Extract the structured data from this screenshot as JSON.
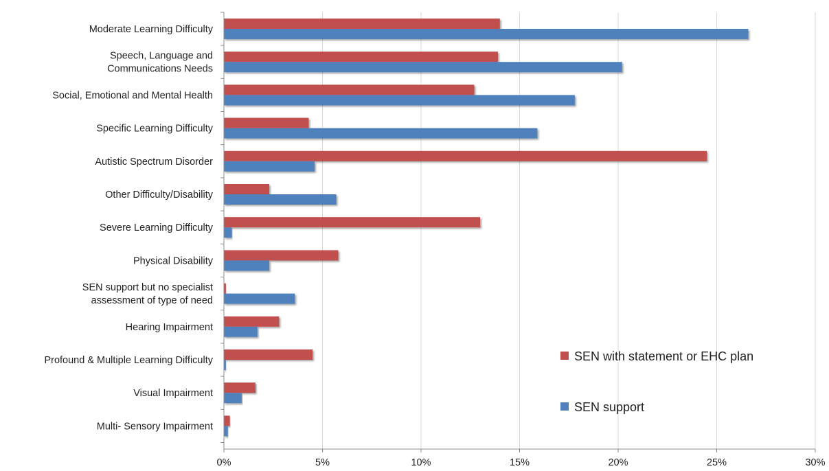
{
  "chart_data": {
    "type": "bar",
    "orientation": "horizontal",
    "title": "",
    "xlabel": "",
    "ylabel": "",
    "categories": [
      [
        "Moderate Learning Difficulty"
      ],
      [
        "Speech, Language and",
        "Communications Needs"
      ],
      [
        "Social, Emotional and Mental Health"
      ],
      [
        "Specific Learning Difficulty"
      ],
      [
        "Autistic Spectrum Disorder"
      ],
      [
        "Other Difficulty/Disability"
      ],
      [
        "Severe Learning Difficulty"
      ],
      [
        "Physical Disability"
      ],
      [
        "SEN support but no specialist",
        "assessment of type of need"
      ],
      [
        "Hearing Impairment"
      ],
      [
        "Profound & Multiple Learning Difficulty"
      ],
      [
        "Visual Impairment"
      ],
      [
        "Multi- Sensory Impairment"
      ]
    ],
    "series": [
      {
        "name": "SEN with statement or EHC plan",
        "color": "#c0504d",
        "values": [
          14.0,
          13.9,
          12.7,
          4.3,
          24.5,
          2.3,
          13.0,
          5.8,
          0.1,
          2.8,
          4.5,
          1.6,
          0.3
        ]
      },
      {
        "name": "SEN support",
        "color": "#4f81bd",
        "values": [
          26.6,
          20.2,
          17.8,
          15.9,
          4.6,
          5.7,
          0.4,
          2.3,
          3.6,
          1.7,
          0.1,
          0.9,
          0.2
        ]
      }
    ],
    "xlim": [
      0,
      30
    ],
    "xticks": [
      0,
      5,
      10,
      15,
      20,
      25,
      30
    ],
    "xtick_labels": [
      "0%",
      "5%",
      "10%",
      "15%",
      "20%",
      "25%",
      "30%"
    ],
    "grid": true,
    "legend_position": "bottom-right"
  }
}
